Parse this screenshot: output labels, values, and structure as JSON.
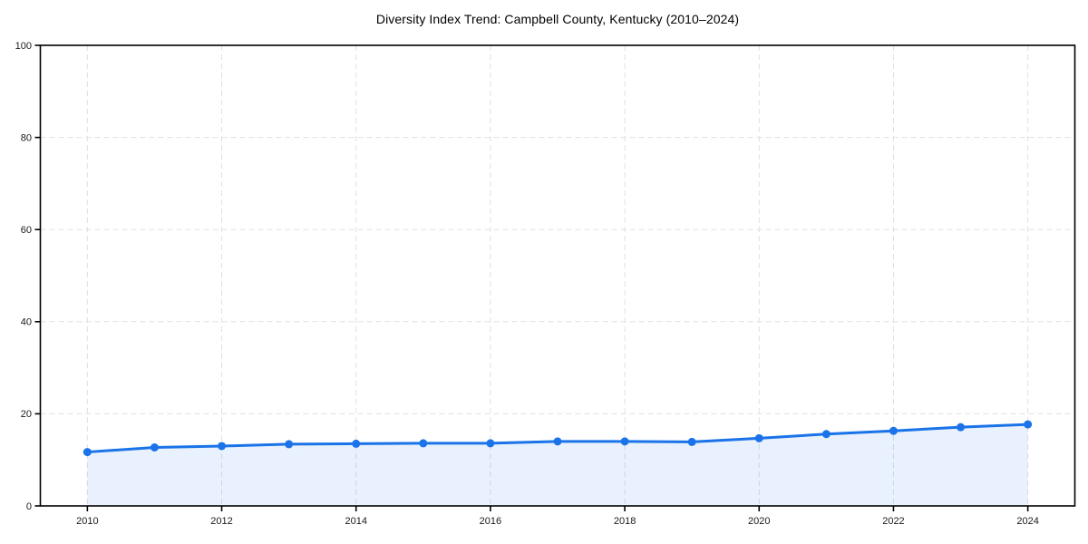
{
  "chart_data": {
    "type": "line",
    "title": "Diversity Index Trend: Campbell County, Kentucky (2010–2024)",
    "xlabel": "",
    "ylabel": "",
    "x": [
      2010,
      2011,
      2012,
      2013,
      2014,
      2015,
      2016,
      2017,
      2018,
      2019,
      2020,
      2021,
      2022,
      2023,
      2024
    ],
    "series": [
      {
        "name": "Diversity Index",
        "values": [
          11.7,
          12.7,
          13.0,
          13.4,
          13.5,
          13.6,
          13.6,
          14.0,
          14.0,
          13.9,
          14.7,
          15.6,
          16.3,
          17.1,
          17.7
        ],
        "marker": "circle",
        "area_fill": true
      }
    ],
    "xticks": [
      "2010",
      "2012",
      "2014",
      "2016",
      "2018",
      "2020",
      "2022",
      "2024"
    ],
    "yticks": [
      "0",
      "20",
      "40",
      "60",
      "80",
      "100"
    ],
    "xlim": [
      2009.3,
      2024.7
    ],
    "ylim": [
      0,
      100
    ],
    "grid": {
      "visible": true,
      "style": "dashed"
    },
    "legend_position": "none",
    "colors": {
      "line": "#1a73e8",
      "marker": "#1a73e8",
      "area_fill": "rgba(26,115,232,0.10)",
      "grid": "#e0e0e0",
      "axis": "#000000",
      "title_text": "#000000",
      "tick_text": "#1a1a1a",
      "background": "#ffffff"
    }
  }
}
